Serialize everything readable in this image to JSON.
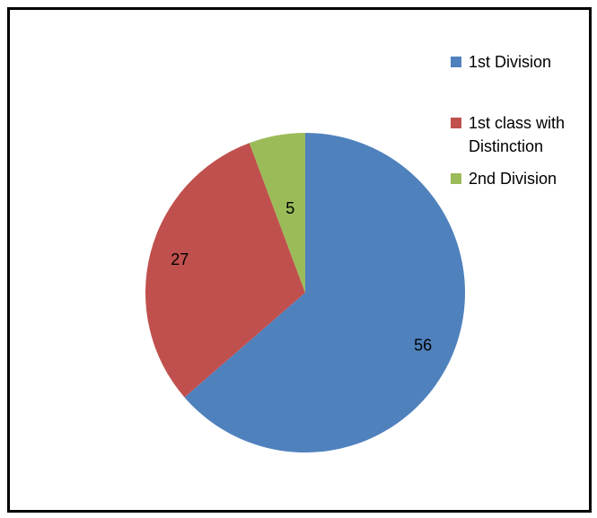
{
  "chart_data": {
    "type": "pie",
    "categories": [
      "1st Division",
      "1st class with Distinction",
      "2nd Division"
    ],
    "values": [
      56,
      27,
      5
    ],
    "colors": [
      "#4f81bd",
      "#c0504d",
      "#9bbb59"
    ],
    "legend": "right"
  }
}
